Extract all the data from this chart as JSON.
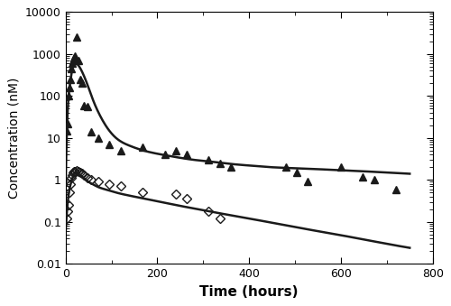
{
  "title": "",
  "xlabel": "Time (hours)",
  "ylabel": "Concentration (nM)",
  "xlim": [
    0,
    800
  ],
  "ylim": [
    0.01,
    10000
  ],
  "background_color": "#ffffff",
  "border_color": "#000000",
  "tri_x": [
    2,
    4,
    6,
    8,
    10,
    12,
    14,
    16,
    18,
    20,
    24,
    28,
    32,
    36,
    40,
    48,
    56,
    72,
    96,
    120,
    168,
    216,
    240,
    264,
    312,
    336,
    360,
    480,
    504,
    528,
    600,
    648,
    672,
    720
  ],
  "tri_y": [
    15,
    22,
    100,
    160,
    250,
    450,
    600,
    700,
    800,
    900,
    2500,
    700,
    250,
    200,
    60,
    55,
    14,
    10,
    7,
    5,
    6,
    4,
    5,
    4,
    3,
    2.5,
    2,
    2,
    1.5,
    0.9,
    2,
    1.2,
    1,
    0.6
  ],
  "dia_x": [
    2,
    4,
    6,
    8,
    10,
    12,
    14,
    16,
    18,
    20,
    24,
    28,
    32,
    36,
    40,
    48,
    56,
    72,
    96,
    120,
    168,
    240,
    264,
    312,
    336
  ],
  "dia_y": [
    0.12,
    0.18,
    0.25,
    0.5,
    0.8,
    1.1,
    1.3,
    1.5,
    1.6,
    1.6,
    1.7,
    1.6,
    1.5,
    1.4,
    1.3,
    1.1,
    1.0,
    0.9,
    0.8,
    0.7,
    0.5,
    0.45,
    0.35,
    0.18,
    0.12
  ],
  "line_high_x": [
    0,
    5,
    10,
    15,
    18,
    22,
    26,
    30,
    36,
    42,
    50,
    60,
    72,
    90,
    110,
    140,
    170,
    200,
    240,
    280,
    320,
    360,
    400,
    450,
    500,
    550,
    600,
    650,
    700,
    750
  ],
  "line_high_y": [
    0.5,
    50,
    200,
    450,
    580,
    620,
    570,
    500,
    380,
    270,
    160,
    80,
    40,
    18,
    10,
    6.5,
    5,
    4.2,
    3.5,
    3.0,
    2.7,
    2.4,
    2.2,
    2.0,
    1.9,
    1.8,
    1.7,
    1.6,
    1.5,
    1.4
  ],
  "line_low_x": [
    0,
    5,
    10,
    15,
    18,
    22,
    26,
    30,
    36,
    42,
    50,
    60,
    72,
    90,
    110,
    140,
    170,
    200,
    250,
    300,
    350,
    400,
    450,
    500,
    550,
    600,
    650,
    700,
    750
  ],
  "line_low_y": [
    0.05,
    0.3,
    0.7,
    1.1,
    1.35,
    1.5,
    1.45,
    1.35,
    1.2,
    1.05,
    0.9,
    0.78,
    0.67,
    0.58,
    0.5,
    0.42,
    0.36,
    0.31,
    0.24,
    0.19,
    0.15,
    0.12,
    0.095,
    0.075,
    0.06,
    0.048,
    0.038,
    0.03,
    0.024
  ],
  "marker_color": "#1a1a1a",
  "line_color": "#1a1a1a",
  "line_width": 1.8,
  "marker_size_tri": 6,
  "marker_size_dia": 5
}
